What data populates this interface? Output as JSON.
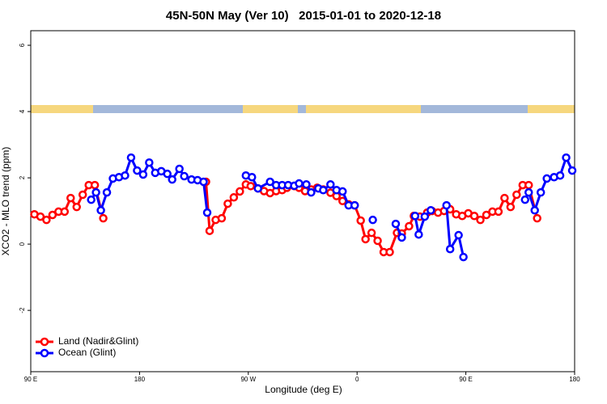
{
  "chart_data": {
    "type": "line",
    "title": "45N-50N May (Ver 10)   2015-01-01 to 2020-12-18",
    "x_label": "Longitude (deg E)",
    "y_label": "XCO2 - MLO trend (ppm)",
    "xlim": [
      90,
      540
    ],
    "ylim": [
      -3.85,
      6.44
    ],
    "xticks": [
      {
        "value": 90,
        "label": "90 E"
      },
      180,
      {
        "value": 270,
        "label": "90 W"
      },
      {
        "value": 360,
        "label": "0"
      },
      {
        "value": 450,
        "label": "90 E"
      },
      {
        "value": 540,
        "label": "180"
      }
    ],
    "yticks": [
      -2,
      0,
      2,
      4,
      6
    ],
    "legend": "bottom-left",
    "series": [
      {
        "name": "Land (Nadir&Glint)",
        "color": "#ff0000",
        "x": [
          93,
          98,
          103,
          108,
          113,
          118,
          123,
          128,
          133,
          138,
          143,
          150,
          null,
          235,
          238,
          243,
          248,
          253,
          258,
          263,
          268,
          272,
          278,
          283,
          288,
          293,
          298,
          302,
          308,
          312,
          317,
          322,
          327,
          332,
          338,
          343,
          348,
          353,
          358,
          363,
          367,
          372,
          377,
          382,
          387,
          393,
          397,
          403,
          407,
          412,
          418,
          422,
          427,
          432,
          437,
          442,
          447,
          452,
          457,
          462,
          467,
          472,
          477,
          482,
          487,
          492,
          497,
          502,
          509
        ],
        "values": [
          0.9,
          0.83,
          0.73,
          0.88,
          0.98,
          0.98,
          1.39,
          1.12,
          1.49,
          1.78,
          1.78,
          0.78,
          null,
          1.88,
          0.4,
          0.73,
          0.78,
          1.22,
          1.41,
          1.59,
          1.8,
          1.75,
          1.68,
          1.6,
          1.54,
          1.6,
          1.63,
          1.7,
          1.75,
          1.7,
          1.6,
          1.65,
          1.7,
          1.65,
          1.55,
          1.45,
          1.3,
          1.2,
          1.17,
          0.71,
          0.15,
          0.34,
          0.1,
          -0.24,
          -0.24,
          0.34,
          0.32,
          0.54,
          0.85,
          0.83,
          0.95,
          1.0,
          0.95,
          1.0,
          1.05,
          0.9,
          0.85,
          0.93,
          0.85,
          0.73,
          0.88,
          0.98,
          0.98,
          1.39,
          1.12,
          1.49,
          1.78,
          1.78,
          0.78
        ]
      },
      {
        "name": "Ocean (Glint)",
        "color": "#0000ff",
        "x": [
          140,
          144,
          148,
          153,
          158,
          163,
          168,
          173,
          178,
          183,
          188,
          193,
          198,
          203,
          207,
          213,
          217,
          223,
          228,
          233,
          236,
          null,
          268,
          273,
          278,
          288,
          293,
          298,
          303,
          308,
          312,
          318,
          322,
          328,
          332,
          338,
          343,
          348,
          353,
          358,
          null,
          373,
          null,
          392,
          397,
          null,
          408,
          411,
          416,
          421,
          null,
          434,
          437,
          444,
          448,
          null,
          499,
          502,
          507,
          512,
          517,
          523,
          528,
          533,
          538
        ],
        "values": [
          1.34,
          1.56,
          1.02,
          1.56,
          1.98,
          2.02,
          2.07,
          2.61,
          2.22,
          2.1,
          2.46,
          2.15,
          2.2,
          2.12,
          1.95,
          2.27,
          2.05,
          1.95,
          1.93,
          1.88,
          0.95,
          null,
          2.07,
          2.02,
          1.68,
          1.88,
          1.78,
          1.78,
          1.78,
          1.76,
          1.83,
          1.8,
          1.56,
          1.68,
          1.63,
          1.8,
          1.63,
          1.59,
          1.17,
          1.17,
          null,
          0.73,
          null,
          0.61,
          0.2,
          null,
          0.85,
          0.29,
          0.83,
          1.02,
          null,
          1.17,
          -0.15,
          0.27,
          -0.39,
          null,
          1.34,
          1.56,
          1.02,
          1.56,
          1.98,
          2.02,
          2.07,
          2.61,
          2.22
        ]
      }
    ]
  }
}
